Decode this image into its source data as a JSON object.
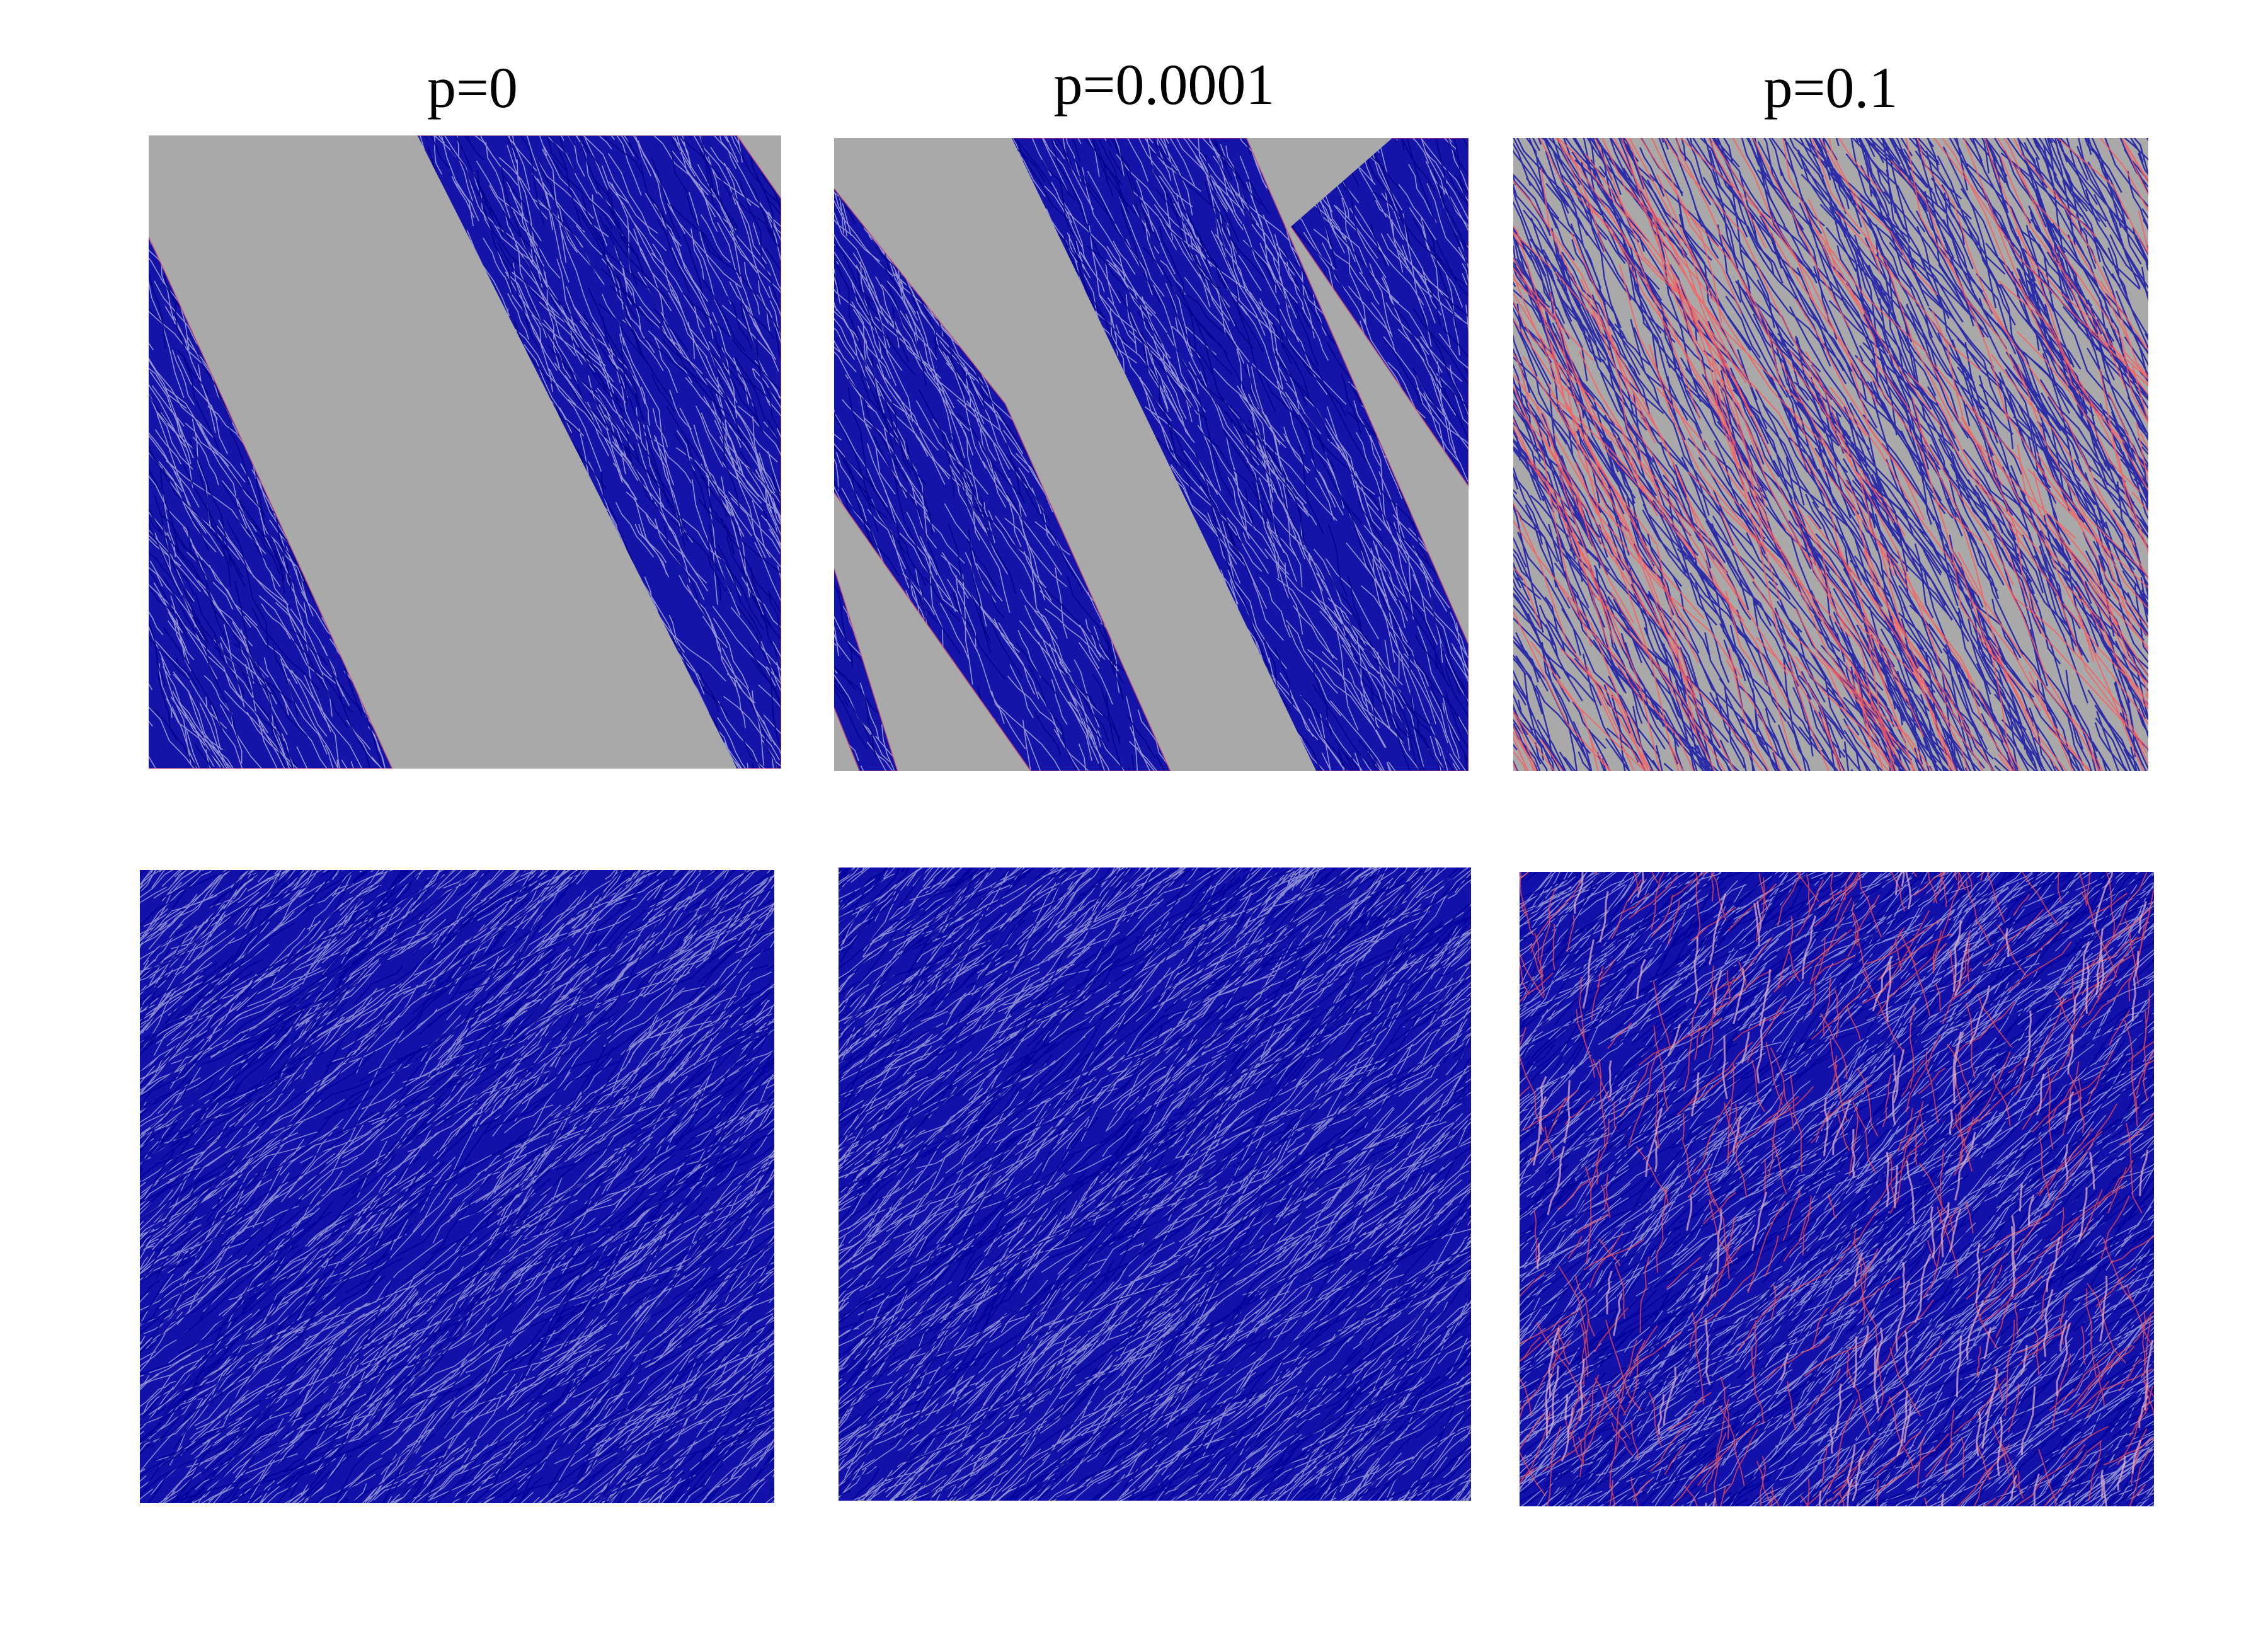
{
  "titles": [
    "p=0",
    "p=0.0001",
    "p=0.1"
  ]
}
